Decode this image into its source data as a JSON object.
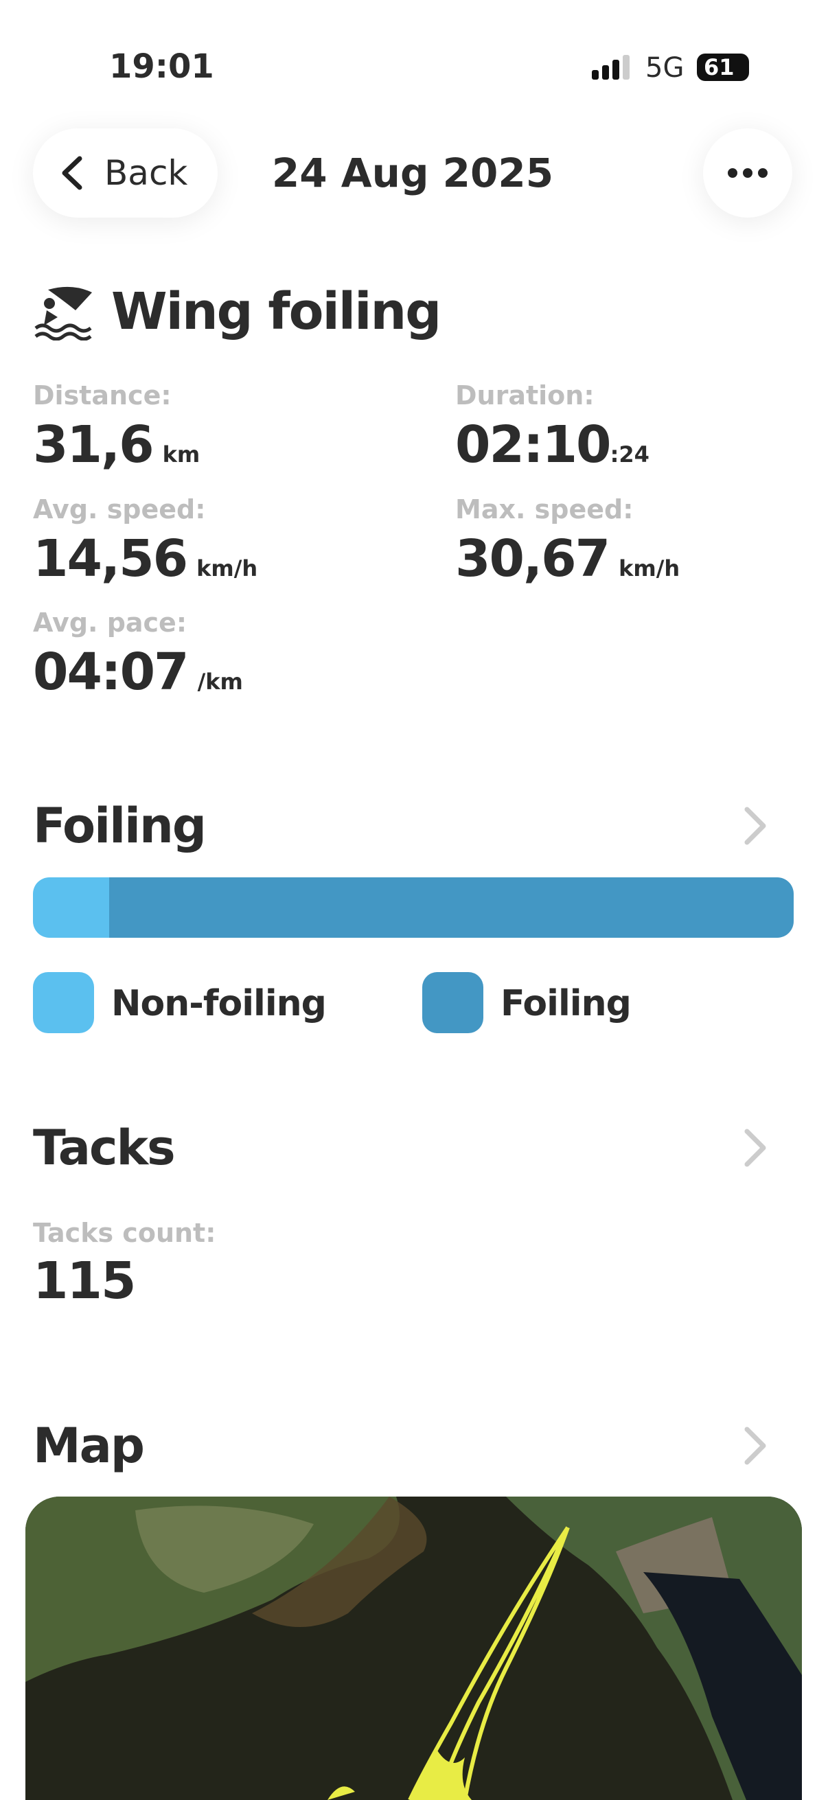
{
  "status_bar": {
    "time": "19:01",
    "network": "5G",
    "battery": "61"
  },
  "header": {
    "back": "Back",
    "title": "24 Aug 2025"
  },
  "activity": {
    "title": "Wing foiling",
    "stats": [
      {
        "label": "Distance:",
        "value": "31,6",
        "unit": "km"
      },
      {
        "label": "Duration:",
        "value": "02:10",
        "unit": ":24"
      },
      {
        "label": "Avg. speed:",
        "value": "14,56",
        "unit": "km/h"
      },
      {
        "label": "Max. speed:",
        "value": "30,67",
        "unit": "km/h"
      },
      {
        "label": "Avg. pace:",
        "value": "04:07",
        "unit": "/km"
      }
    ]
  },
  "foiling": {
    "title": "Foiling",
    "segments": [
      {
        "name": "Non-foiling",
        "color": "#5bc0ef",
        "value": 10
      },
      {
        "name": "Foiling",
        "color": "#4397c4",
        "value": 90
      }
    ]
  },
  "tacks": {
    "title": "Tacks",
    "label": "Tacks count:",
    "value": "115"
  },
  "map": {
    "title": "Map"
  }
}
